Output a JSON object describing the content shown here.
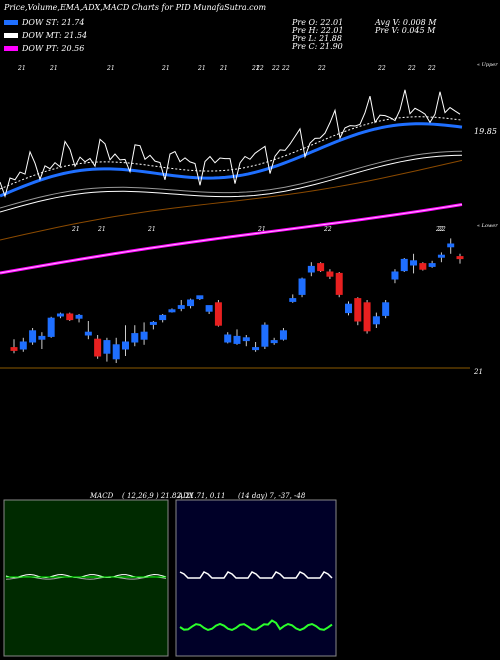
{
  "header": {
    "title": "Price,Volume,EMA,ADX,MACD Charts for PID MunafaSutra.com"
  },
  "legend": [
    {
      "label": "DOW ST: 21.74",
      "color": "#1f6fff"
    },
    {
      "label": "DOW MT: 21.54",
      "color": "#ffffff"
    },
    {
      "label": "DOW PT: 20.56",
      "color": "#ff00ff"
    }
  ],
  "stats": {
    "open": "Pre  O: 22.01",
    "high": "Pre  H: 22.01",
    "low": "Pre  L: 21.88",
    "close": "Pre  C: 21.90",
    "avg_vol": "Avg V: 0.008  M",
    "pre_vol": "Pre  V: 0.045 M"
  },
  "price_label": "19.85",
  "bottom_label": "21",
  "upper_right_label": "« Upper",
  "lower_right_label": "« Lower",
  "top_tick_labels": [
    "21",
    "21",
    "21",
    "21",
    "21",
    "21",
    "21",
    "22",
    "22",
    "22",
    "22",
    "22",
    "22",
    "22"
  ],
  "mid_tick_labels": [
    "21",
    "21",
    "21",
    "21",
    "22",
    "22"
  ],
  "candle_tick_label": "22",
  "macd": {
    "label": "MACD",
    "params": "( 12,26,9 ) 21.82, 21.71, 0.11"
  },
  "adx": {
    "label": "ADX",
    "params": "(14  day) 7, -37, -48"
  },
  "chart_data": {
    "type": "candlestick",
    "title": "Price,Volume,EMA,ADX,MACD Charts for PID MunafaSutra.com",
    "series": [
      {
        "name": "DOW ST",
        "last": 21.74
      },
      {
        "name": "DOW MT",
        "last": 21.54
      },
      {
        "name": "DOW PT",
        "last": 20.56
      }
    ],
    "previous_session": {
      "open": 22.01,
      "high": 22.01,
      "low": 21.88,
      "close": 21.9,
      "volume_M": 0.045,
      "avg_volume_M": 0.008
    },
    "macd": {
      "params": [
        12,
        26,
        9
      ],
      "values": [
        21.82,
        21.71,
        0.11
      ]
    },
    "adx": {
      "period_days": 14,
      "values": [
        7,
        -37,
        -48
      ]
    },
    "candles": [
      {
        "o": 21.06,
        "h": 21.12,
        "l": 21.02,
        "c": 21.04,
        "up": false
      },
      {
        "o": 21.05,
        "h": 21.13,
        "l": 21.03,
        "c": 21.1,
        "up": true
      },
      {
        "o": 21.1,
        "h": 21.2,
        "l": 21.08,
        "c": 21.18,
        "up": true
      },
      {
        "o": 21.12,
        "h": 21.17,
        "l": 21.05,
        "c": 21.14,
        "up": true
      },
      {
        "o": 21.14,
        "h": 21.28,
        "l": 21.13,
        "c": 21.27,
        "up": true
      },
      {
        "o": 21.3,
        "h": 21.31,
        "l": 21.27,
        "c": 21.29,
        "up": true
      },
      {
        "o": 21.3,
        "h": 21.31,
        "l": 21.25,
        "c": 21.26,
        "up": false
      },
      {
        "o": 21.27,
        "h": 21.3,
        "l": 21.24,
        "c": 21.29,
        "up": true
      },
      {
        "o": 21.15,
        "h": 21.25,
        "l": 21.12,
        "c": 21.17,
        "up": true
      },
      {
        "o": 21.12,
        "h": 21.15,
        "l": 20.98,
        "c": 21.0,
        "up": false
      },
      {
        "o": 21.02,
        "h": 21.13,
        "l": 20.96,
        "c": 21.11,
        "up": true
      },
      {
        "o": 21.08,
        "h": 21.13,
        "l": 20.95,
        "c": 20.98,
        "up": true
      },
      {
        "o": 21.05,
        "h": 21.22,
        "l": 21.0,
        "c": 21.1,
        "up": true
      },
      {
        "o": 21.1,
        "h": 21.22,
        "l": 21.07,
        "c": 21.16,
        "up": true
      },
      {
        "o": 21.17,
        "h": 21.24,
        "l": 21.08,
        "c": 21.12,
        "up": true
      },
      {
        "o": 21.23,
        "h": 21.25,
        "l": 21.19,
        "c": 21.24,
        "up": true
      },
      {
        "o": 21.26,
        "h": 21.3,
        "l": 21.24,
        "c": 21.29,
        "up": true
      },
      {
        "o": 21.33,
        "h": 21.34,
        "l": 21.31,
        "c": 21.32,
        "up": true
      },
      {
        "o": 21.34,
        "h": 21.4,
        "l": 21.32,
        "c": 21.36,
        "up": true
      },
      {
        "o": 21.4,
        "h": 21.41,
        "l": 21.34,
        "c": 21.36,
        "up": true
      },
      {
        "o": 21.43,
        "h": 21.43,
        "l": 21.4,
        "c": 21.41,
        "up": true
      },
      {
        "o": 21.36,
        "h": 21.36,
        "l": 21.3,
        "c": 21.32,
        "up": true
      },
      {
        "o": 21.38,
        "h": 21.4,
        "l": 21.21,
        "c": 21.22,
        "up": false
      },
      {
        "o": 21.15,
        "h": 21.17,
        "l": 21.09,
        "c": 21.1,
        "up": true
      },
      {
        "o": 21.14,
        "h": 21.19,
        "l": 21.08,
        "c": 21.09,
        "up": true
      },
      {
        "o": 21.13,
        "h": 21.15,
        "l": 21.07,
        "c": 21.11,
        "up": true
      },
      {
        "o": 21.06,
        "h": 21.1,
        "l": 21.03,
        "c": 21.05,
        "up": true
      },
      {
        "o": 21.07,
        "h": 21.24,
        "l": 21.05,
        "c": 21.22,
        "up": true
      },
      {
        "o": 21.11,
        "h": 21.13,
        "l": 21.08,
        "c": 21.1,
        "up": true
      },
      {
        "o": 21.12,
        "h": 21.2,
        "l": 21.11,
        "c": 21.18,
        "up": true
      },
      {
        "o": 21.41,
        "h": 21.44,
        "l": 21.38,
        "c": 21.39,
        "up": true
      },
      {
        "o": 21.44,
        "h": 21.56,
        "l": 21.42,
        "c": 21.55,
        "up": true
      },
      {
        "o": 21.6,
        "h": 21.67,
        "l": 21.57,
        "c": 21.64,
        "up": true
      },
      {
        "o": 21.66,
        "h": 21.67,
        "l": 21.6,
        "c": 21.61,
        "up": false
      },
      {
        "o": 21.6,
        "h": 21.62,
        "l": 21.55,
        "c": 21.57,
        "up": false
      },
      {
        "o": 21.59,
        "h": 21.6,
        "l": 21.42,
        "c": 21.44,
        "up": false
      },
      {
        "o": 21.37,
        "h": 21.39,
        "l": 21.29,
        "c": 21.31,
        "up": true
      },
      {
        "o": 21.41,
        "h": 21.42,
        "l": 21.22,
        "c": 21.25,
        "up": false
      },
      {
        "o": 21.38,
        "h": 21.4,
        "l": 21.16,
        "c": 21.18,
        "up": false
      },
      {
        "o": 21.28,
        "h": 21.31,
        "l": 21.2,
        "c": 21.23,
        "up": true
      },
      {
        "o": 21.29,
        "h": 21.4,
        "l": 21.27,
        "c": 21.38,
        "up": true
      },
      {
        "o": 21.55,
        "h": 21.62,
        "l": 21.52,
        "c": 21.6,
        "up": true
      },
      {
        "o": 21.61,
        "h": 21.7,
        "l": 21.6,
        "c": 21.69,
        "up": true
      },
      {
        "o": 21.68,
        "h": 21.73,
        "l": 21.59,
        "c": 21.65,
        "up": true
      },
      {
        "o": 21.66,
        "h": 21.67,
        "l": 21.61,
        "c": 21.62,
        "up": false
      },
      {
        "o": 21.66,
        "h": 21.68,
        "l": 21.63,
        "c": 21.64,
        "up": true
      },
      {
        "o": 21.72,
        "h": 21.74,
        "l": 21.67,
        "c": 21.71,
        "up": true
      },
      {
        "o": 21.78,
        "h": 21.84,
        "l": 21.73,
        "c": 21.8,
        "up": true
      },
      {
        "o": 21.71,
        "h": 21.73,
        "l": 21.66,
        "c": 21.7,
        "up": false
      }
    ]
  }
}
